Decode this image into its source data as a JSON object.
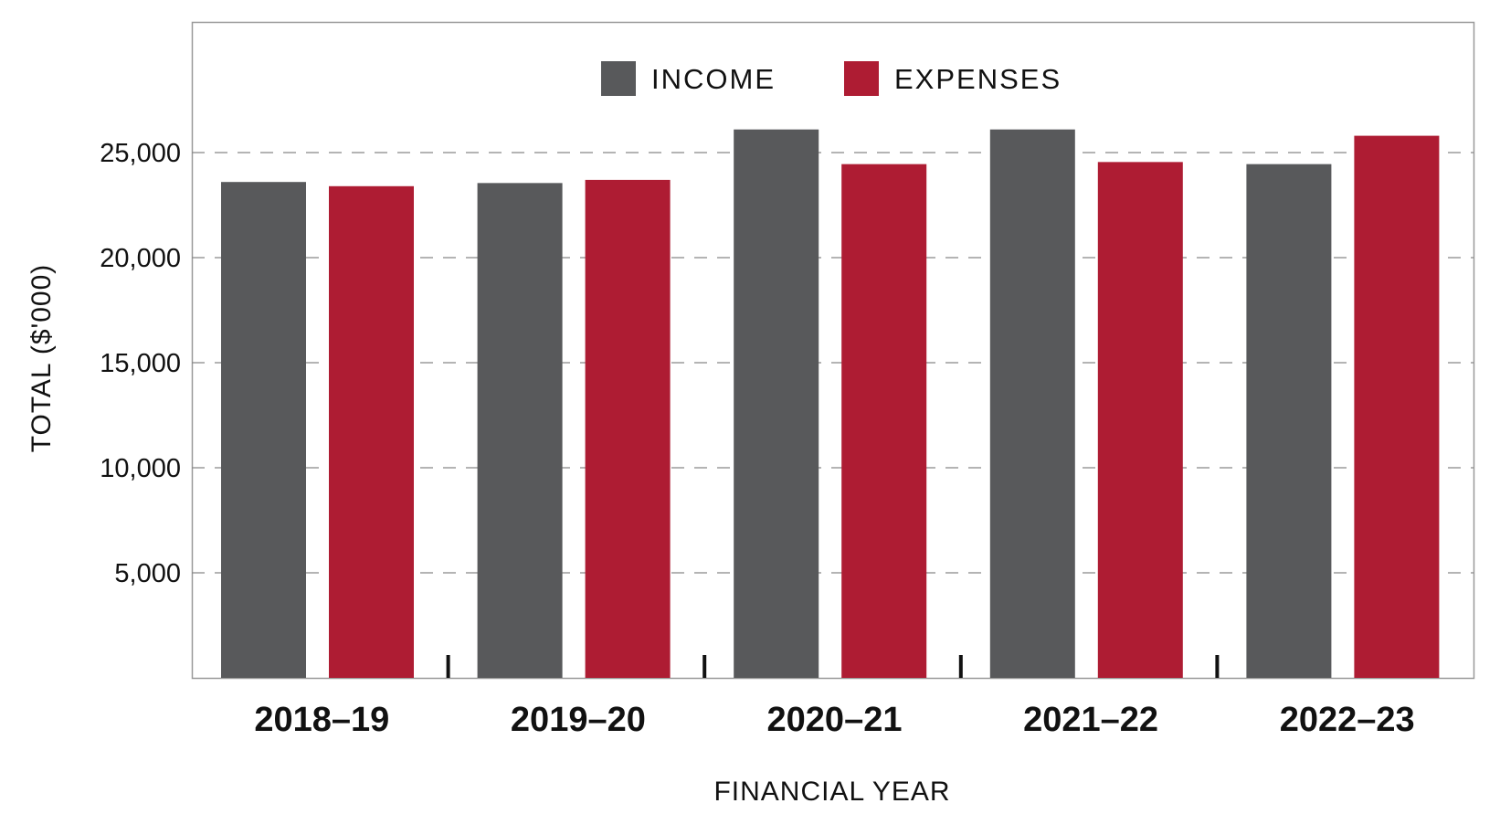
{
  "chart_data": {
    "type": "bar",
    "title": "",
    "xlabel": "FINANCIAL YEAR",
    "ylabel": "TOTAL ($'000)",
    "ylim": [
      0,
      30000
    ],
    "yticks": [
      5000,
      10000,
      15000,
      20000,
      25000
    ],
    "ytick_labels": [
      "5,000",
      "10,000",
      "15,000",
      "20,000",
      "25,000"
    ],
    "grid": "horizontal-dashed",
    "legend_position": "top-center",
    "categories": [
      "2018–19",
      "2019–20",
      "2020–21",
      "2021–22",
      "2022–23"
    ],
    "series": [
      {
        "name": "INCOME",
        "color": "#58595b",
        "values": [
          23600,
          23550,
          26100,
          26100,
          24450
        ]
      },
      {
        "name": "EXPENSES",
        "color": "#ae1c33",
        "values": [
          23400,
          23700,
          24450,
          24550,
          25800
        ]
      }
    ]
  }
}
